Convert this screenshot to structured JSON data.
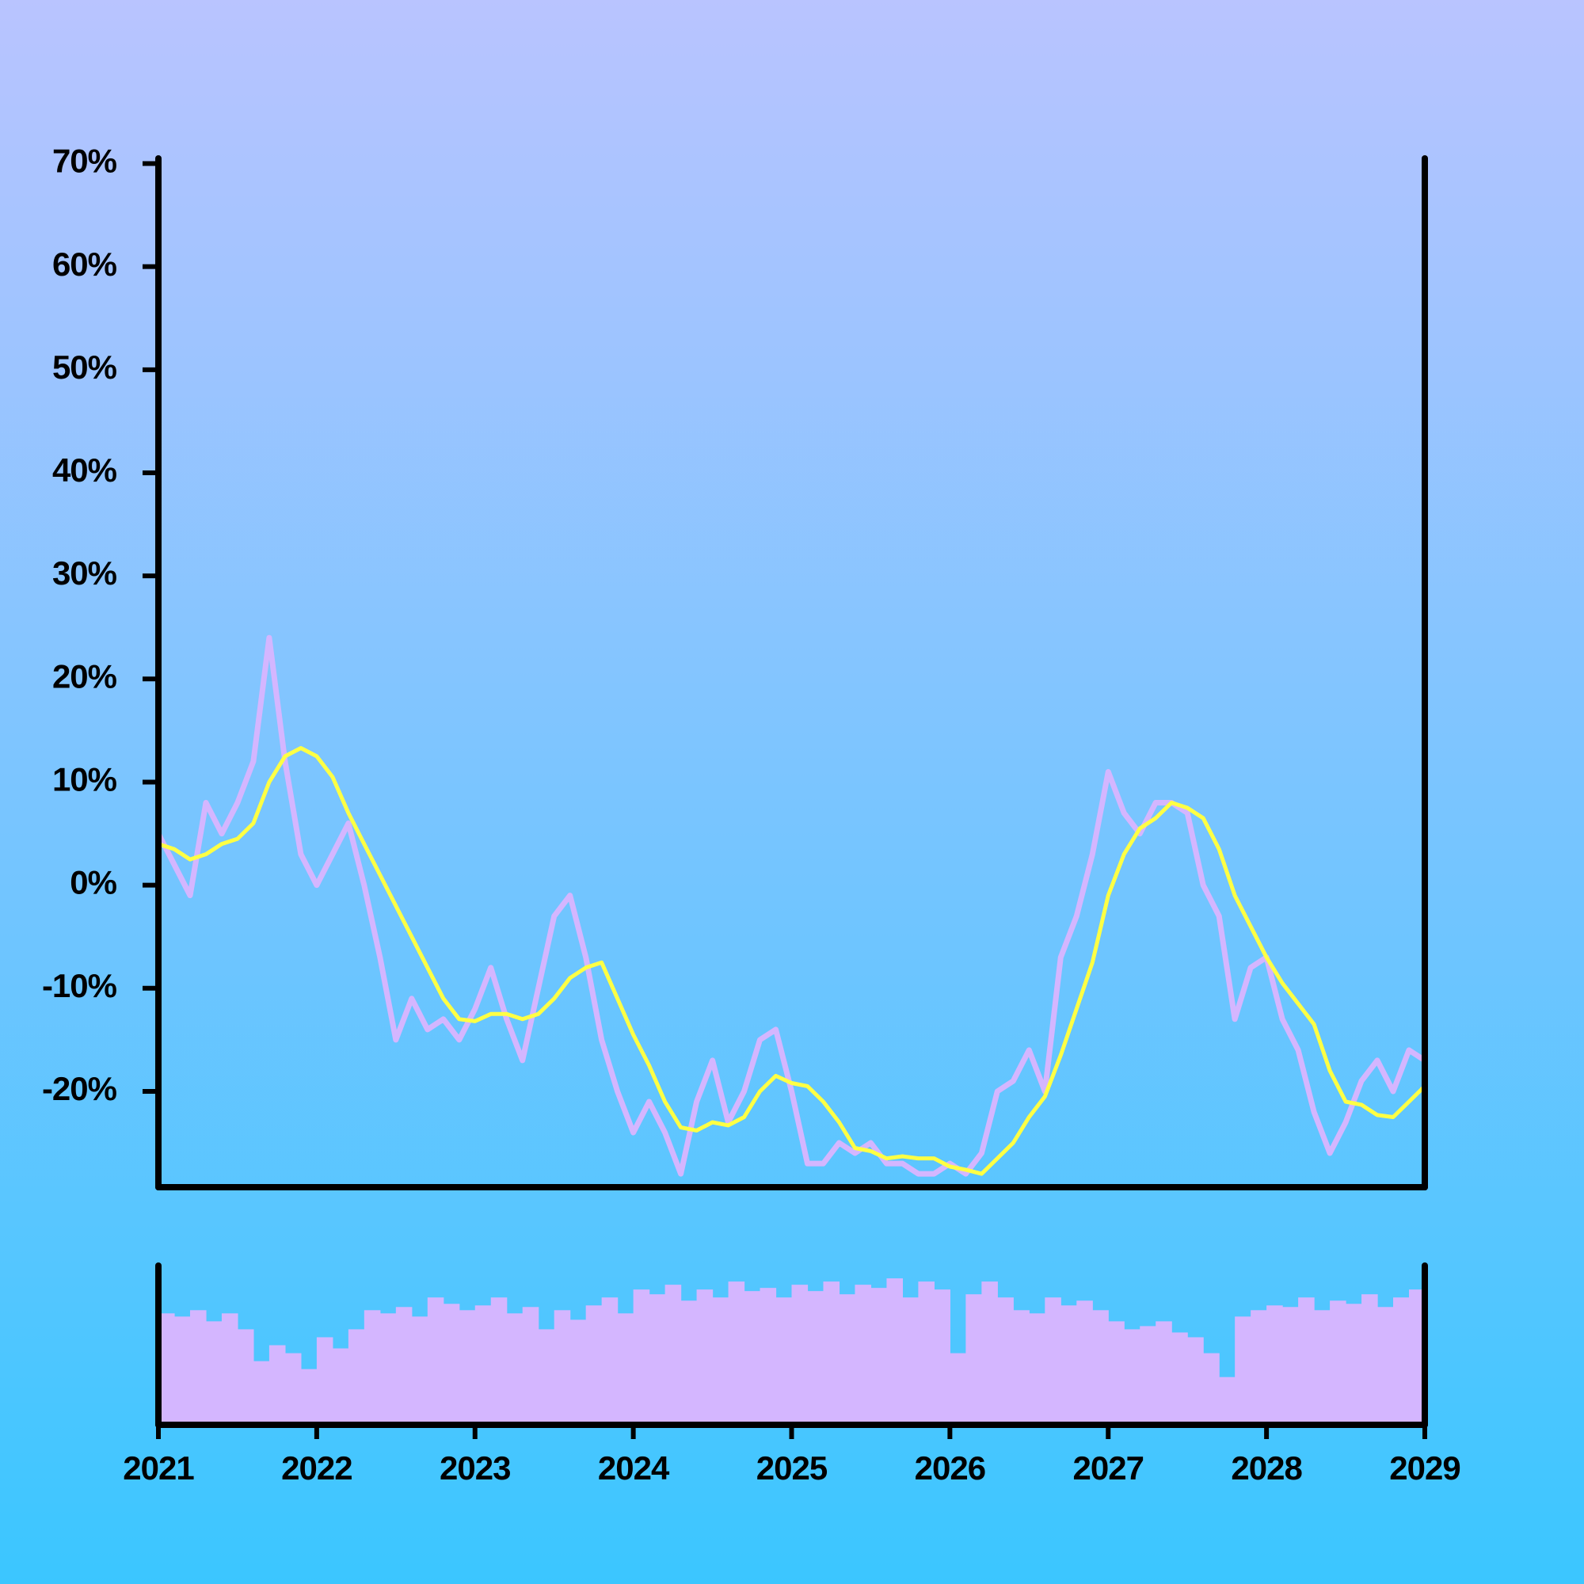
{
  "chart_data": [
    {
      "type": "line",
      "x": [
        2021.0,
        2021.1,
        2021.2,
        2021.3,
        2021.4,
        2021.5,
        2021.6,
        2021.7,
        2021.8,
        2021.9,
        2022.0,
        2022.1,
        2022.2,
        2022.3,
        2022.4,
        2022.5,
        2022.6,
        2022.7,
        2022.8,
        2022.9,
        2023.0,
        2023.1,
        2023.2,
        2023.3,
        2023.4,
        2023.5,
        2023.6,
        2023.7,
        2023.8,
        2023.9,
        2024.0,
        2024.1,
        2024.2,
        2024.3,
        2024.4,
        2024.5,
        2024.6,
        2024.7,
        2024.8,
        2024.9,
        2025.0,
        2025.1,
        2025.2,
        2025.3,
        2025.4,
        2025.5,
        2025.6,
        2025.7,
        2025.8,
        2025.9,
        2026.0,
        2026.1,
        2026.2,
        2026.3,
        2026.4,
        2026.5,
        2026.6,
        2026.7,
        2026.8,
        2026.9,
        2027.0,
        2027.1,
        2027.2,
        2027.3,
        2027.4,
        2027.5,
        2027.6,
        2027.7,
        2027.8,
        2027.9,
        2028.0,
        2028.1,
        2028.2,
        2028.3,
        2028.4,
        2028.5,
        2028.6,
        2028.7,
        2028.8,
        2028.9,
        2029.0
      ],
      "series": [
        {
          "color": "#d4b6ff",
          "values": [
            5,
            2,
            -1,
            8,
            5,
            8,
            12,
            24,
            12,
            3,
            0,
            3,
            6,
            0,
            -7,
            -15,
            -11,
            -14,
            -13,
            -15,
            -12,
            -8,
            -13,
            -17,
            -10,
            -3,
            -1,
            -7,
            -15,
            -20,
            -24,
            -21,
            -24,
            -28,
            -21,
            -17,
            -23,
            -20,
            -15,
            -14,
            -20,
            -27,
            -27,
            -25,
            -26,
            -25,
            -27,
            -27,
            -28,
            -28,
            -27,
            -28,
            -26,
            -20,
            -19,
            -16,
            -20,
            -7,
            -3,
            3,
            11,
            7,
            5,
            8,
            8,
            7,
            0,
            -3,
            -13,
            -8,
            -7,
            -13,
            -16,
            -22,
            -26,
            -23,
            -19,
            -17,
            -20,
            -16,
            -17
          ]
        },
        {
          "color": "#ffff44",
          "values": [
            4,
            3.5,
            2.5,
            3,
            4,
            4.5,
            6,
            10,
            12.5,
            13.3,
            12.5,
            10.5,
            7,
            4,
            1,
            -2,
            -5,
            -8,
            -11,
            -13,
            -13.2,
            -12.5,
            -12.5,
            -13,
            -12.5,
            -11,
            -9,
            -8,
            -7.5,
            -11,
            -14.5,
            -17.5,
            -21,
            -23.5,
            -23.8,
            -23,
            -23.3,
            -22.5,
            -20,
            -18.5,
            -19.2,
            -19.5,
            -21,
            -23,
            -25.5,
            -25.8,
            -26.5,
            -26.3,
            -26.5,
            -26.5,
            -27.3,
            -27.6,
            -28,
            -26.5,
            -25,
            -22.5,
            -20.5,
            -16.5,
            -12,
            -7.5,
            -1,
            3,
            5.5,
            6.5,
            8,
            7.5,
            6.5,
            3.5,
            -1,
            -4,
            -7,
            -9.5,
            -11.5,
            -13.5,
            -18,
            -21,
            -21.3,
            -22.3,
            -22.5,
            -21,
            -19.5
          ]
        }
      ],
      "xlim": [
        2021,
        2029
      ],
      "ylim": [
        -29.3,
        70.5
      ],
      "yticks": [
        {
          "value": 70,
          "label": "70%"
        },
        {
          "value": 60,
          "label": "60%"
        },
        {
          "value": 50,
          "label": "50%"
        },
        {
          "value": 40,
          "label": "40%"
        },
        {
          "value": 30,
          "label": "30%"
        },
        {
          "value": 20,
          "label": "20%"
        },
        {
          "value": 10,
          "label": "10%"
        },
        {
          "value": 0,
          "label": "0%"
        },
        {
          "value": -10,
          "label": "-10%"
        },
        {
          "value": -20,
          "label": "-20%"
        }
      ]
    },
    {
      "type": "bar",
      "x": [
        2021.0,
        2021.1,
        2021.2,
        2021.3,
        2021.4,
        2021.5,
        2021.6,
        2021.7,
        2021.8,
        2021.9,
        2022.0,
        2022.1,
        2022.2,
        2022.3,
        2022.4,
        2022.5,
        2022.6,
        2022.7,
        2022.8,
        2022.9,
        2023.0,
        2023.1,
        2023.2,
        2023.3,
        2023.4,
        2023.5,
        2023.6,
        2023.7,
        2023.8,
        2023.9,
        2024.0,
        2024.1,
        2024.2,
        2024.3,
        2024.4,
        2024.5,
        2024.6,
        2024.7,
        2024.8,
        2024.9,
        2025.0,
        2025.1,
        2025.2,
        2025.3,
        2025.4,
        2025.5,
        2025.6,
        2025.7,
        2025.8,
        2025.9,
        2026.0,
        2026.1,
        2026.2,
        2026.3,
        2026.4,
        2026.5,
        2026.6,
        2026.7,
        2026.8,
        2026.9,
        2027.0,
        2027.1,
        2027.2,
        2027.3,
        2027.4,
        2027.5,
        2027.6,
        2027.7,
        2027.8,
        2027.9,
        2028.0,
        2028.1,
        2028.2,
        2028.3,
        2028.4,
        2028.5,
        2028.6,
        2028.7,
        2028.8,
        2028.9,
        2029.0
      ],
      "values": [
        70,
        68,
        72,
        65,
        70,
        60,
        40,
        50,
        45,
        35,
        55,
        48,
        60,
        72,
        70,
        74,
        68,
        80,
        76,
        72,
        75,
        80,
        70,
        74,
        60,
        72,
        66,
        75,
        80,
        70,
        85,
        82,
        88,
        78,
        85,
        80,
        90,
        84,
        86,
        80,
        88,
        84,
        90,
        82,
        88,
        86,
        92,
        80,
        90,
        85,
        45,
        82,
        90,
        80,
        72,
        70,
        80,
        75,
        78,
        72,
        65,
        60,
        62,
        65,
        58,
        55,
        45,
        30,
        68,
        72,
        75,
        74,
        80,
        72,
        78,
        76,
        82,
        74,
        80,
        85,
        78
      ],
      "color": "#d4b6ff",
      "xlim": [
        2021,
        2029
      ],
      "ylim": [
        0,
        100
      ],
      "xticks": [
        2021,
        2022,
        2023,
        2024,
        2025,
        2026,
        2027,
        2028,
        2029
      ]
    }
  ]
}
